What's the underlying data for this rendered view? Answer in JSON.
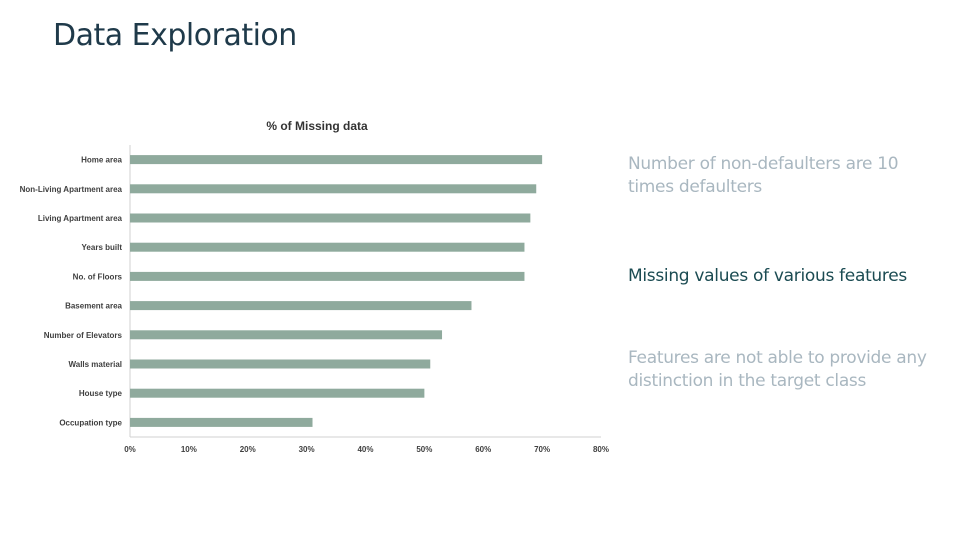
{
  "slide": {
    "title": "Data Exploration",
    "points": [
      {
        "text": "Number of non-defaulters are 10 times defaulters",
        "state": "muted"
      },
      {
        "text": "Missing values of various features",
        "state": "active"
      },
      {
        "text": "Features are not able to provide any distinction in the target class",
        "state": "muted"
      }
    ]
  },
  "colors": {
    "bar": "#8faa9d",
    "title": "#1f3a4a",
    "active_text": "#1b4b52",
    "muted_text": "#a9b7c0",
    "axis": "#d0d0d0"
  },
  "chart_data": {
    "type": "bar",
    "orientation": "horizontal",
    "title": "% of Missing data",
    "xlabel": "",
    "ylabel": "",
    "categories": [
      "Home area",
      "Non-Living Apartment area",
      "Living Apartment area",
      "Years built",
      "No. of Floors",
      "Basement area",
      "Number of Elevators",
      "Walls material",
      "House type",
      "Occupation type"
    ],
    "values": [
      70,
      69,
      68,
      67,
      67,
      58,
      53,
      51,
      50,
      31
    ],
    "xlim": [
      0,
      80
    ],
    "x_ticks": [
      "0%",
      "10%",
      "20%",
      "30%",
      "40%",
      "50%",
      "60%",
      "70%",
      "80%"
    ],
    "grid": false,
    "legend": "none"
  }
}
